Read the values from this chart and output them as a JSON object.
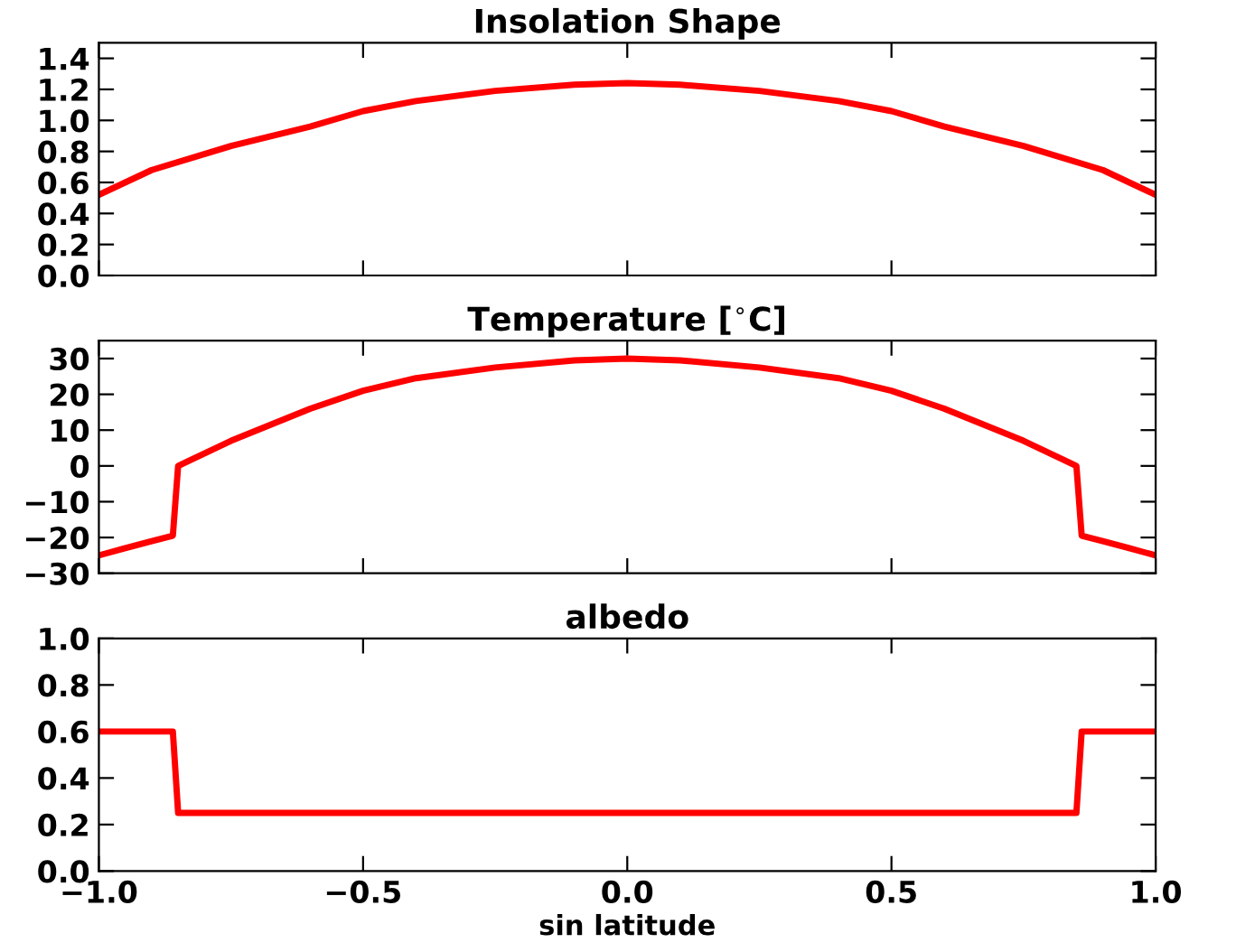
{
  "chart_data": [
    {
      "type": "line",
      "title": "Insolation Shape",
      "x": [
        -1,
        -0.9,
        -0.75,
        -0.6,
        -0.5,
        -0.4,
        -0.25,
        -0.1,
        0,
        0.1,
        0.25,
        0.4,
        0.5,
        0.6,
        0.75,
        0.9,
        1
      ],
      "series": [
        {
          "color": "#ff0000",
          "values": [
            0.52,
            0.68,
            0.835,
            0.96,
            1.06,
            1.125,
            1.19,
            1.23,
            1.24,
            1.23,
            1.19,
            1.125,
            1.06,
            0.96,
            0.835,
            0.68,
            0.52
          ]
        }
      ],
      "xlim": [
        -1,
        1
      ],
      "xticks": [
        -1,
        -0.5,
        0,
        0.5,
        1
      ],
      "ylim": [
        0,
        1.5
      ],
      "yticks": [
        {
          "value": 0,
          "label": "0.0"
        },
        {
          "value": 0.2,
          "label": "0.2"
        },
        {
          "value": 0.4,
          "label": "0.4"
        },
        {
          "value": 0.6,
          "label": "0.6"
        },
        {
          "value": 0.8,
          "label": "0.8"
        },
        {
          "value": 1.0,
          "label": "1.0"
        },
        {
          "value": 1.2,
          "label": "1.2"
        },
        {
          "value": 1.4,
          "label": "1.4"
        }
      ],
      "tick_labels": "y",
      "grid": false,
      "legend": false,
      "marker": "none",
      "line_style": "solid"
    },
    {
      "type": "line",
      "title": "Temperature [$^{∘}$C]",
      "x": [
        -1,
        -0.95,
        -0.9,
        -0.86,
        -0.85,
        -0.75,
        -0.6,
        -0.5,
        -0.4,
        -0.25,
        -0.1,
        0,
        0.1,
        0.25,
        0.4,
        0.5,
        0.6,
        0.75,
        0.85,
        0.86,
        0.9,
        0.95,
        1
      ],
      "series": [
        {
          "color": "#ff0000",
          "values": [
            -25,
            -23,
            -21,
            -19.5,
            0,
            7,
            16,
            21,
            24.5,
            27.5,
            29.5,
            30,
            29.5,
            27.5,
            24.5,
            21,
            16,
            7,
            0,
            -19.5,
            -21,
            -23,
            -25
          ]
        }
      ],
      "xlim": [
        -1,
        1
      ],
      "xticks": [
        -1,
        -0.5,
        0,
        0.5,
        1
      ],
      "ylim": [
        -30,
        35
      ],
      "yticks": [
        {
          "value": -30,
          "label": "−30"
        },
        {
          "value": -20,
          "label": "−20"
        },
        {
          "value": -10,
          "label": "−10"
        },
        0,
        10,
        20,
        30
      ],
      "tick_labels": "y",
      "grid": false,
      "legend": false,
      "marker": "none",
      "line_style": "solid"
    },
    {
      "type": "line",
      "title": "albedo",
      "xlabel": "sin latitude",
      "x": [
        -1,
        -0.86,
        -0.85,
        0.85,
        0.86,
        1
      ],
      "series": [
        {
          "color": "#ff0000",
          "values": [
            0.6,
            0.6,
            0.25,
            0.25,
            0.6,
            0.6
          ]
        }
      ],
      "xlim": [
        -1,
        1
      ],
      "xticks": [
        {
          "value": -1,
          "label": "−1.0"
        },
        {
          "value": -0.5,
          "label": "−0.5"
        },
        {
          "value": 0,
          "label": "0.0"
        },
        {
          "value": 0.5,
          "label": "0.5"
        },
        {
          "value": 1,
          "label": "1.0"
        }
      ],
      "ylim": [
        0,
        1
      ],
      "yticks": [
        {
          "value": 0,
          "label": "0.0"
        },
        {
          "value": 0.2,
          "label": "0.2"
        },
        {
          "value": 0.4,
          "label": "0.4"
        },
        {
          "value": 0.6,
          "label": "0.6"
        },
        {
          "value": 0.8,
          "label": "0.8"
        },
        {
          "value": 1.0,
          "label": "1.0"
        }
      ],
      "grid": false,
      "legend": false,
      "marker": "none",
      "line_style": "solid"
    }
  ]
}
